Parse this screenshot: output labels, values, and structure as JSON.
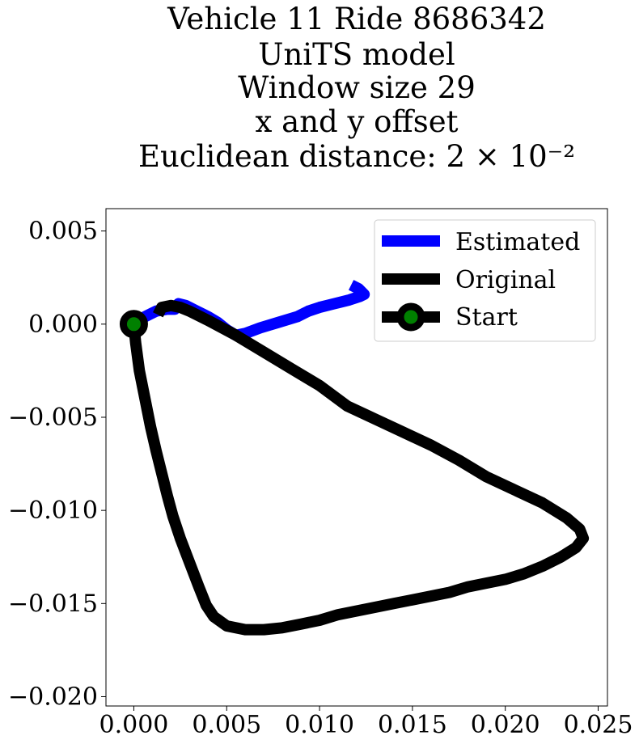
{
  "chart_data": {
    "type": "line",
    "title_lines": [
      "Vehicle 11 Ride 8686342",
      "UniTS model",
      "Window size 29",
      "x and y offset",
      "Euclidean distance: 2 × 10⁻²"
    ],
    "xlabel": "",
    "ylabel": "",
    "xlim": [
      -0.0015,
      0.0255
    ],
    "ylim": [
      -0.0205,
      0.0062
    ],
    "x_ticks": [
      0.0,
      0.005,
      0.01,
      0.015,
      0.02,
      0.025
    ],
    "x_tick_labels": [
      "0.000",
      "0.005",
      "0.010",
      "0.015",
      "0.020",
      "0.025"
    ],
    "y_ticks": [
      0.005,
      0.0,
      -0.005,
      -0.01,
      -0.015,
      -0.02
    ],
    "y_tick_labels": [
      "0.005",
      "0.000",
      "−0.005",
      "−0.010",
      "−0.015",
      "−0.020"
    ],
    "grid": false,
    "legend_position": "top-right",
    "colors": {
      "estimated": "#0000ff",
      "original": "#000000",
      "start_marker_fill": "#008000",
      "start_marker_edge": "#000000"
    },
    "series": [
      {
        "name": "Estimated",
        "points": [
          [
            0.0,
            0.0
          ],
          [
            0.0006,
            0.0004
          ],
          [
            0.0012,
            0.0007
          ],
          [
            0.0018,
            0.0008
          ],
          [
            0.0022,
            0.0008
          ],
          [
            0.0024,
            0.0011
          ],
          [
            0.0028,
            0.001
          ],
          [
            0.0034,
            0.0007
          ],
          [
            0.004,
            0.0004
          ],
          [
            0.0045,
            0.0001
          ],
          [
            0.005,
            -0.0003
          ],
          [
            0.0055,
            -0.0006
          ],
          [
            0.006,
            -0.0005
          ],
          [
            0.0068,
            -0.0002
          ],
          [
            0.0078,
            0.0001
          ],
          [
            0.0088,
            0.0004
          ],
          [
            0.0094,
            0.0007
          ],
          [
            0.01,
            0.0009
          ],
          [
            0.0108,
            0.0011
          ],
          [
            0.0116,
            0.0013
          ],
          [
            0.0122,
            0.0015
          ],
          [
            0.0124,
            0.0016
          ],
          [
            0.0121,
            0.0019
          ],
          [
            0.0117,
            0.0021
          ]
        ]
      },
      {
        "name": "Original",
        "points": [
          [
            0.0,
            0.0
          ],
          [
            0.0001,
            -0.001
          ],
          [
            0.0003,
            -0.0025
          ],
          [
            0.0006,
            -0.004
          ],
          [
            0.0009,
            -0.0055
          ],
          [
            0.0012,
            -0.0068
          ],
          [
            0.0015,
            -0.008
          ],
          [
            0.0018,
            -0.0092
          ],
          [
            0.0021,
            -0.0103
          ],
          [
            0.0025,
            -0.0115
          ],
          [
            0.003,
            -0.0128
          ],
          [
            0.0035,
            -0.0141
          ],
          [
            0.0039,
            -0.0151
          ],
          [
            0.0043,
            -0.0157
          ],
          [
            0.005,
            -0.0162
          ],
          [
            0.006,
            -0.0164
          ],
          [
            0.007,
            -0.0164
          ],
          [
            0.008,
            -0.0163
          ],
          [
            0.009,
            -0.0161
          ],
          [
            0.01,
            -0.0159
          ],
          [
            0.011,
            -0.0156
          ],
          [
            0.012,
            -0.0154
          ],
          [
            0.013,
            -0.0152
          ],
          [
            0.014,
            -0.015
          ],
          [
            0.015,
            -0.0148
          ],
          [
            0.016,
            -0.0146
          ],
          [
            0.017,
            -0.0144
          ],
          [
            0.018,
            -0.0141
          ],
          [
            0.019,
            -0.0139
          ],
          [
            0.02,
            -0.0137
          ],
          [
            0.021,
            -0.0134
          ],
          [
            0.022,
            -0.013
          ],
          [
            0.023,
            -0.0125
          ],
          [
            0.0238,
            -0.012
          ],
          [
            0.0242,
            -0.0115
          ],
          [
            0.024,
            -0.011
          ],
          [
            0.0233,
            -0.0104
          ],
          [
            0.022,
            -0.0096
          ],
          [
            0.0205,
            -0.0089
          ],
          [
            0.019,
            -0.0082
          ],
          [
            0.0175,
            -0.0073
          ],
          [
            0.016,
            -0.0065
          ],
          [
            0.0145,
            -0.0058
          ],
          [
            0.013,
            -0.0051
          ],
          [
            0.0115,
            -0.0044
          ],
          [
            0.01,
            -0.0033
          ],
          [
            0.0085,
            -0.0024
          ],
          [
            0.007,
            -0.0015
          ],
          [
            0.0055,
            -0.0006
          ],
          [
            0.004,
            0.0002
          ],
          [
            0.003,
            0.0007
          ],
          [
            0.0025,
            0.0009
          ],
          [
            0.002,
            0.001
          ],
          [
            0.0015,
            0.0009
          ],
          [
            0.0013,
            0.0005
          ]
        ]
      }
    ],
    "start_point": {
      "name": "Start",
      "x": 0.0,
      "y": 0.0
    },
    "legend": [
      "Estimated",
      "Original",
      "Start"
    ]
  }
}
